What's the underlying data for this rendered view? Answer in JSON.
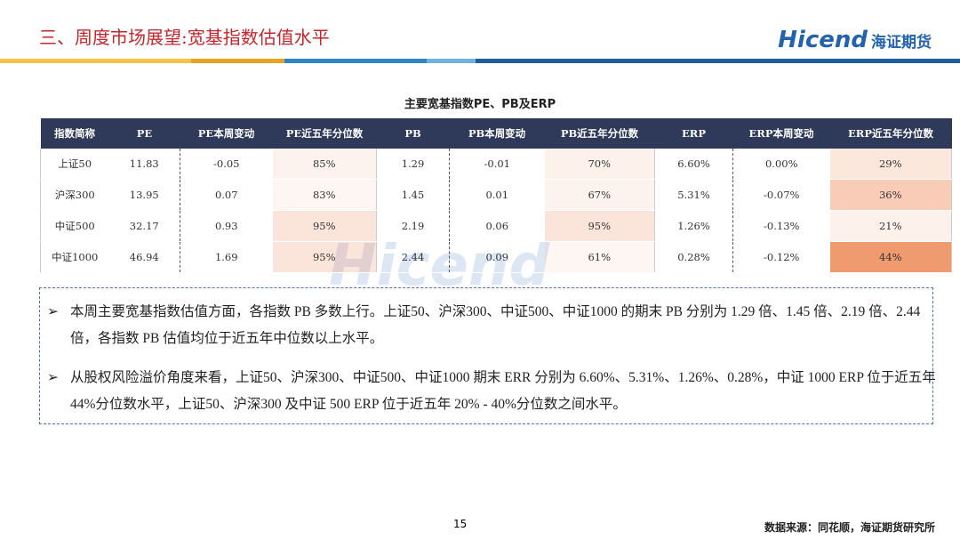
{
  "header": {
    "title": "三、周度市场展望:宽基指数估值水平",
    "logo_en": "Hicend",
    "logo_cn": "海证期货"
  },
  "table": {
    "title": "主要宽基指数PE、PB及ERP",
    "columns": [
      "指数简称",
      "PE",
      "PE本周变动",
      "PE近五年分位数",
      "PB",
      "PB本周变动",
      "PB近五年分位数",
      "ERP",
      "ERP本周变动",
      "ERP近五年分位数"
    ],
    "rows": [
      [
        "上证50",
        "11.83",
        "-0.05",
        "85%",
        "1.29",
        "-0.01",
        "70%",
        "6.60%",
        "0.00%",
        "29%"
      ],
      [
        "沪深300",
        "13.95",
        "0.07",
        "83%",
        "1.45",
        "0.01",
        "67%",
        "5.31%",
        "-0.07%",
        "36%"
      ],
      [
        "中证500",
        "32.17",
        "0.93",
        "95%",
        "2.19",
        "0.06",
        "95%",
        "1.26%",
        "-0.13%",
        "21%"
      ],
      [
        "中证1000",
        "46.94",
        "1.69",
        "95%",
        "2.44",
        "0.09",
        "61%",
        "0.28%",
        "-0.12%",
        "44%"
      ]
    ]
  },
  "watermark": "Hicend",
  "bullets": [
    "本周主要宽基指数估值方面，各指数 PB 多数上行。上证50、沪深300、中证500、中证1000 的期末 PB 分别为 1.29 倍、1.45 倍、2.19 倍、2.44 倍，各指数 PB 估值均位于近五年中位数以上水平。",
    "从股权风险溢价角度来看，上证50、沪深300、中证500、中证1000 期末 ERR 分别为 6.60%、5.31%、1.26%、0.28%，中证 1000 ERP 位于近五年 44%分位数水平，上证50、沪深300 及中证 500 ERP 位于近五年 20% - 40%分位数之间水平。"
  ],
  "page_number": "15",
  "source": "数据来源：同花顺，海证期货研究所"
}
